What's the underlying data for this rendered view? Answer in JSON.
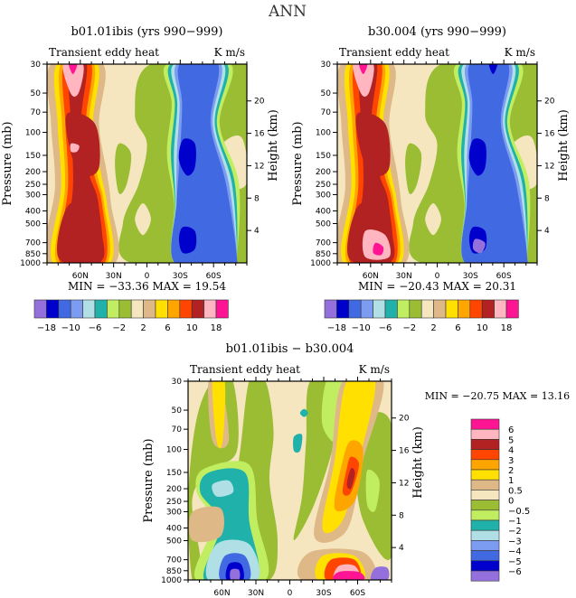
{
  "page_title": "ANN",
  "chart_data": [
    {
      "id": "panel1",
      "type": "heatmap",
      "title": "b01.01ibis (yrs 990−999)",
      "subtitle_left": "Transient eddy heat",
      "subtitle_right": "K m/s",
      "xlabel": "",
      "ylabel": "Pressure (mb)",
      "ylabel_right": "Height (km)",
      "x_ticks": [
        "60N",
        "30N",
        "0",
        "30S",
        "60S"
      ],
      "x_tick_values": [
        60,
        30,
        0,
        -30,
        -60
      ],
      "xlim": [
        90,
        -90
      ],
      "y_ticks": [
        "30",
        "50",
        "70",
        "100",
        "150",
        "200",
        "250",
        "300",
        "400",
        "500",
        "700",
        "850",
        "1000"
      ],
      "y_tick_values": [
        30,
        50,
        70,
        100,
        150,
        200,
        250,
        300,
        400,
        500,
        700,
        850,
        1000
      ],
      "ylim": [
        1000,
        30
      ],
      "y_right_ticks": [
        "4",
        "8",
        "12",
        "16",
        "20"
      ],
      "stats": {
        "min_label": "MIN =",
        "min": "−33.36",
        "max_label": "MAX =",
        "max": "19.54"
      },
      "colorbar": {
        "orientation": "horizontal",
        "levels": [
          -18,
          -14,
          -10,
          -8,
          -6,
          -4,
          -2,
          0,
          2,
          4,
          6,
          8,
          10,
          14,
          18
        ],
        "labels": [
          "−18",
          "−10",
          "−6",
          "−2",
          "2",
          "6",
          "10",
          "18"
        ]
      },
      "features": [
        {
          "desc": "NH positive max core upper",
          "lat": 55,
          "p": 35,
          "value": 19
        },
        {
          "desc": "NH positive core 150mb",
          "lat": 50,
          "p": 170,
          "value": 15
        },
        {
          "desc": "NH positive core surface",
          "lat": 50,
          "p": 900,
          "value": 15
        },
        {
          "desc": "SH negative core 150mb",
          "lat": -45,
          "p": 170,
          "value": -20
        },
        {
          "desc": "SH negative core surface",
          "lat": -50,
          "p": 850,
          "value": -20
        }
      ]
    },
    {
      "id": "panel2",
      "type": "heatmap",
      "title": "b30.004 (yrs 990−999)",
      "subtitle_left": "Transient eddy heat",
      "subtitle_right": "K m/s",
      "ylabel": "Pressure (mb)",
      "ylabel_right": "Height (km)",
      "x_ticks": [
        "60N",
        "30N",
        "0",
        "30S",
        "60S"
      ],
      "x_tick_values": [
        60,
        30,
        0,
        -30,
        -60
      ],
      "xlim": [
        90,
        -90
      ],
      "y_ticks": [
        "30",
        "50",
        "70",
        "100",
        "150",
        "200",
        "250",
        "300",
        "400",
        "500",
        "700",
        "850",
        "1000"
      ],
      "y_tick_values": [
        30,
        50,
        70,
        100,
        150,
        200,
        250,
        300,
        400,
        500,
        700,
        850,
        1000
      ],
      "ylim": [
        1000,
        30
      ],
      "y_right_ticks": [
        "4",
        "8",
        "12",
        "16",
        "20"
      ],
      "stats": {
        "min_label": "MIN =",
        "min": "−20.43",
        "max_label": "MAX =",
        "max": "20.31"
      },
      "colorbar": {
        "orientation": "horizontal",
        "levels": [
          -18,
          -14,
          -10,
          -8,
          -6,
          -4,
          -2,
          0,
          2,
          4,
          6,
          8,
          10,
          14,
          18
        ],
        "labels": [
          "−18",
          "−10",
          "−6",
          "−2",
          "2",
          "6",
          "10",
          "18"
        ]
      },
      "features": [
        {
          "desc": "NH positive max core upper",
          "lat": 55,
          "p": 35,
          "value": 19
        },
        {
          "desc": "NH positive core 150mb",
          "lat": 50,
          "p": 170,
          "value": 14
        },
        {
          "desc": "NH positive core surface",
          "lat": 45,
          "p": 900,
          "value": 20
        },
        {
          "desc": "SH negative core 150mb",
          "lat": -45,
          "p": 170,
          "value": -19
        },
        {
          "desc": "SH negative core surface",
          "lat": -50,
          "p": 850,
          "value": -20
        }
      ]
    },
    {
      "id": "panel3",
      "type": "heatmap",
      "title": "b01.01ibis − b30.004",
      "subtitle_left": "Transient eddy heat",
      "subtitle_right": "K m/s",
      "ylabel": "Pressure (mb)",
      "ylabel_right": "Height (km)",
      "x_ticks": [
        "60N",
        "30N",
        "0",
        "30S",
        "60S"
      ],
      "x_tick_values": [
        60,
        30,
        0,
        -30,
        -60
      ],
      "xlim": [
        90,
        -90
      ],
      "y_ticks": [
        "30",
        "50",
        "70",
        "100",
        "150",
        "200",
        "250",
        "300",
        "400",
        "500",
        "700",
        "850",
        "1000"
      ],
      "y_tick_values": [
        30,
        50,
        70,
        100,
        150,
        200,
        250,
        300,
        400,
        500,
        700,
        850,
        1000
      ],
      "ylim": [
        1000,
        30
      ],
      "y_right_ticks": [
        "4",
        "8",
        "12",
        "16",
        "20"
      ],
      "stats": {
        "min_label": "MIN =",
        "min": "−20.75",
        "max_label": "MAX =",
        "max": "13.16"
      },
      "colorbar": {
        "orientation": "vertical",
        "levels": [
          -6,
          -5,
          -4,
          -3,
          -2,
          -1,
          -0.5,
          0,
          0.5,
          1,
          2,
          3,
          4,
          5,
          6
        ],
        "labels": [
          "6",
          "5",
          "4",
          "3",
          "2",
          "1",
          "0.5",
          "0",
          "−0.5",
          "−1",
          "−2",
          "−3",
          "−4",
          "−5",
          "−6"
        ]
      },
      "features": [
        {
          "desc": "SH positive core 200mb",
          "lat": -55,
          "p": 200,
          "value": 5
        },
        {
          "desc": "SH positive surface",
          "lat": -60,
          "p": 950,
          "value": 6
        },
        {
          "desc": "NH negative 200mb",
          "lat": 55,
          "p": 220,
          "value": -2
        },
        {
          "desc": "NH negative surface",
          "lat": 40,
          "p": 950,
          "value": -6
        }
      ]
    }
  ],
  "colorbar_colors": [
    "#9370DB",
    "#0000CD",
    "#4169E1",
    "#7B9CF0",
    "#B0E0E6",
    "#20B2AA",
    "#C0EE60",
    "#9ABD34",
    "#F5E6C0",
    "#DEB887",
    "#FFE000",
    "#FFA500",
    "#FF4500",
    "#B22222",
    "#FFB6C1",
    "#FF1493"
  ]
}
